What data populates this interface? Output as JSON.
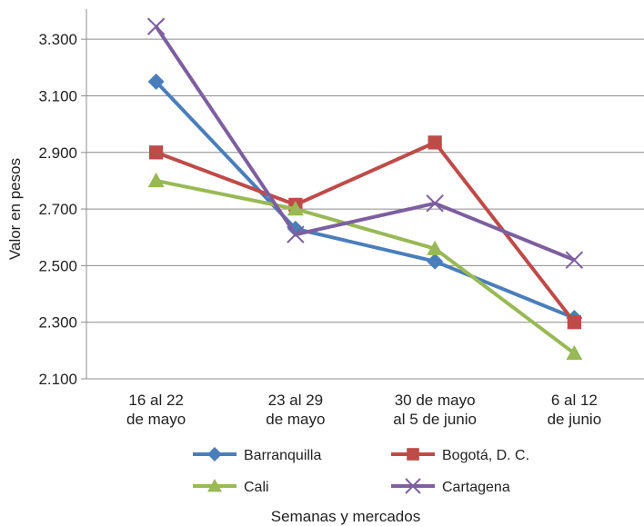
{
  "chart_data": {
    "type": "line",
    "title": "",
    "xlabel": "Semanas y mercados",
    "ylabel": "Valor en pesos",
    "ylim": [
      2100,
      3400
    ],
    "yticks": [
      2100,
      2300,
      2500,
      2700,
      2900,
      3100,
      3300
    ],
    "ytick_labels": [
      "2.100",
      "2.300",
      "2.500",
      "2.700",
      "2.900",
      "3.100",
      "3.300"
    ],
    "grid": "horizontal",
    "legend_position": "bottom",
    "categories": [
      [
        "16 al 22",
        "de mayo"
      ],
      [
        "23 al 29",
        "de mayo"
      ],
      [
        "30 de mayo",
        "al 5 de junio"
      ],
      [
        "6 al 12",
        "de junio"
      ]
    ],
    "series": [
      {
        "name": "Barranquilla",
        "color": "#4a7ebb",
        "marker": "diamond",
        "values": [
          3150,
          2630,
          2515,
          2315
        ]
      },
      {
        "name": "Bogotá, D. C.",
        "color": "#be4b48",
        "marker": "square",
        "values": [
          2900,
          2715,
          2935,
          2300
        ]
      },
      {
        "name": "Cali",
        "color": "#98b954",
        "marker": "triangle",
        "values": [
          2800,
          2700,
          2560,
          2190
        ]
      },
      {
        "name": "Cartagena",
        "color": "#7d5fa0",
        "marker": "x",
        "values": [
          3345,
          2610,
          2720,
          2520
        ]
      }
    ]
  }
}
